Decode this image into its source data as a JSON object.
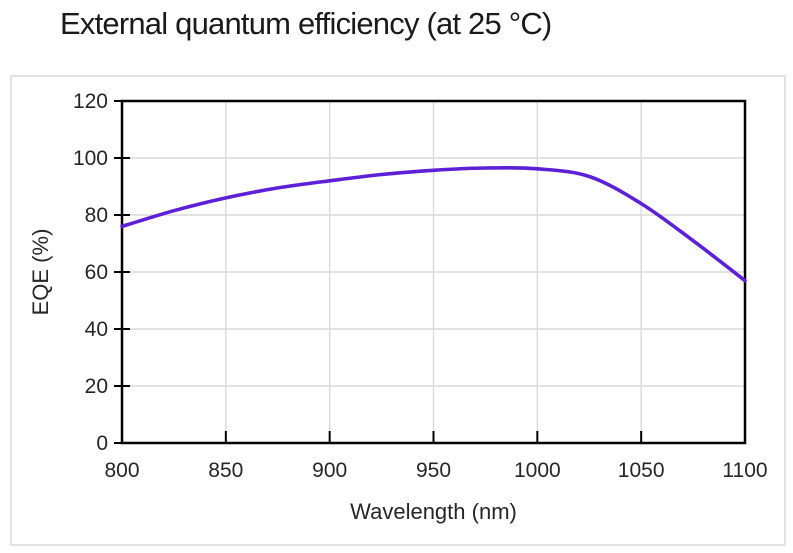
{
  "chart_data": {
    "type": "line",
    "title": "External quantum efficiency (at 25 °C)",
    "xlabel": "Wavelength (nm)",
    "ylabel": "EQE (%)",
    "xlim": [
      800,
      1100
    ],
    "ylim": [
      0,
      120
    ],
    "x_ticks": [
      800,
      850,
      900,
      950,
      1000,
      1050,
      1100
    ],
    "y_ticks": [
      0,
      20,
      40,
      60,
      80,
      100,
      120
    ],
    "grid": true,
    "legend_position": "none",
    "series": [
      {
        "name": "EQE",
        "x": [
          800,
          825,
          850,
          875,
          900,
          925,
          950,
          975,
          1000,
          1025,
          1050,
          1075,
          1100
        ],
        "values": [
          76,
          81.5,
          86,
          89.5,
          92,
          94.2,
          95.7,
          96.5,
          96.2,
          93.5,
          84,
          71,
          57
        ]
      }
    ],
    "colors": {
      "line": "#5e20d6",
      "grid": "#d9d9d9",
      "axis": "#000000",
      "text": "#262626",
      "title_text": "#1a1a1a",
      "panel_border": "#e2e2e2"
    }
  }
}
